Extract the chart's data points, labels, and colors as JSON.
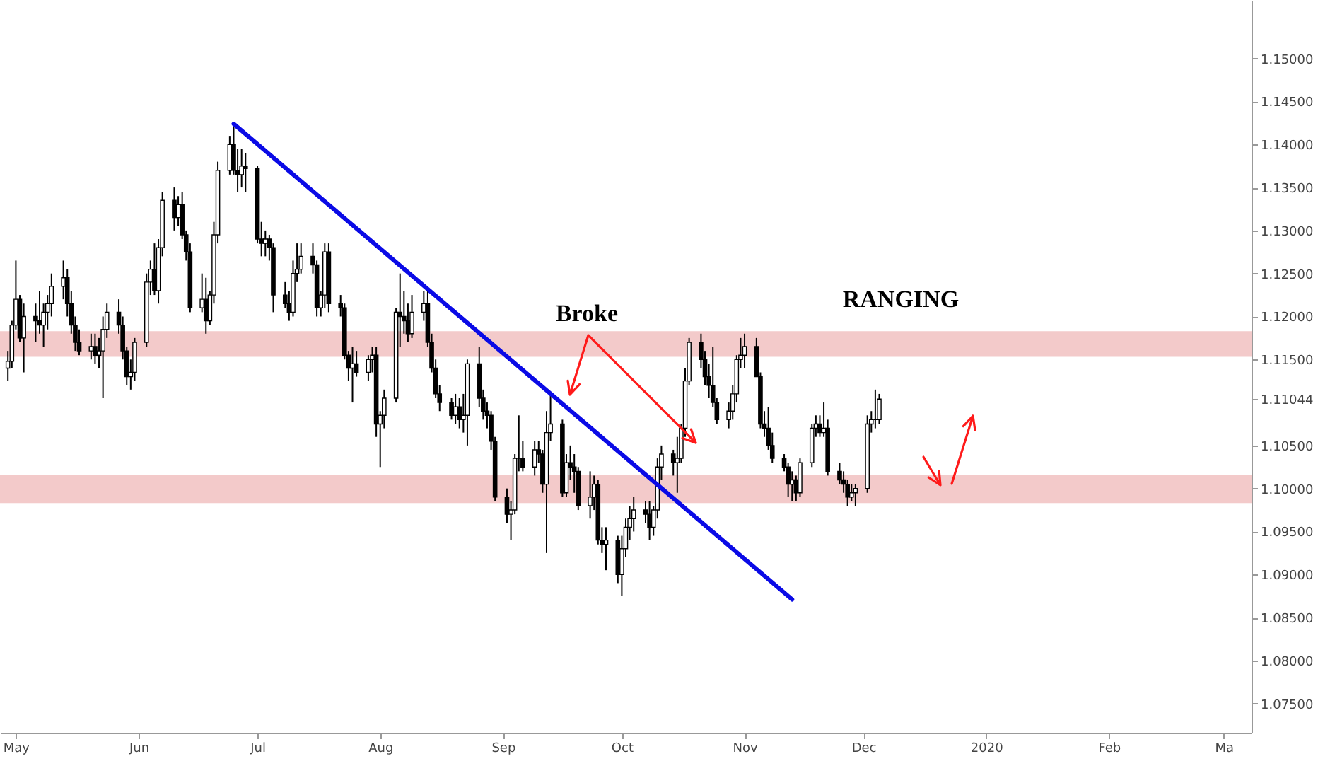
{
  "chart_data": {
    "type": "candlestick",
    "x": [
      "2019-04-29",
      "2019-04-30",
      "2019-05-01",
      "2019-05-02",
      "2019-05-03",
      "2019-05-06",
      "2019-05-07",
      "2019-05-08",
      "2019-05-09",
      "2019-05-10",
      "2019-05-13",
      "2019-05-14",
      "2019-05-15",
      "2019-05-16",
      "2019-05-17",
      "2019-05-20",
      "2019-05-21",
      "2019-05-22",
      "2019-05-23",
      "2019-05-24",
      "2019-05-27",
      "2019-05-28",
      "2019-05-29",
      "2019-05-30",
      "2019-05-31",
      "2019-06-03",
      "2019-06-04",
      "2019-06-05",
      "2019-06-06",
      "2019-06-07",
      "2019-06-10",
      "2019-06-11",
      "2019-06-12",
      "2019-06-13",
      "2019-06-14",
      "2019-06-17",
      "2019-06-18",
      "2019-06-19",
      "2019-06-20",
      "2019-06-21",
      "2019-06-24",
      "2019-06-25",
      "2019-06-26",
      "2019-06-27",
      "2019-06-28",
      "2019-07-01",
      "2019-07-02",
      "2019-07-03",
      "2019-07-04",
      "2019-07-05",
      "2019-07-08",
      "2019-07-09",
      "2019-07-10",
      "2019-07-11",
      "2019-07-12",
      "2019-07-15",
      "2019-07-16",
      "2019-07-17",
      "2019-07-18",
      "2019-07-19",
      "2019-07-22",
      "2019-07-23",
      "2019-07-24",
      "2019-07-25",
      "2019-07-26",
      "2019-07-29",
      "2019-07-30",
      "2019-07-31",
      "2019-08-01",
      "2019-08-02",
      "2019-08-05",
      "2019-08-06",
      "2019-08-07",
      "2019-08-08",
      "2019-08-09",
      "2019-08-12",
      "2019-08-13",
      "2019-08-14",
      "2019-08-15",
      "2019-08-16",
      "2019-08-19",
      "2019-08-20",
      "2019-08-21",
      "2019-08-22",
      "2019-08-23",
      "2019-08-26",
      "2019-08-27",
      "2019-08-28",
      "2019-08-29",
      "2019-08-30",
      "2019-09-02",
      "2019-09-03",
      "2019-09-04",
      "2019-09-05",
      "2019-09-06",
      "2019-09-09",
      "2019-09-10",
      "2019-09-11",
      "2019-09-12",
      "2019-09-13",
      "2019-09-16",
      "2019-09-17",
      "2019-09-18",
      "2019-09-19",
      "2019-09-20",
      "2019-09-23",
      "2019-09-24",
      "2019-09-25",
      "2019-09-26",
      "2019-09-27",
      "2019-09-30",
      "2019-10-01",
      "2019-10-02",
      "2019-10-03",
      "2019-10-04",
      "2019-10-07",
      "2019-10-08",
      "2019-10-09",
      "2019-10-10",
      "2019-10-11",
      "2019-10-14",
      "2019-10-15",
      "2019-10-16",
      "2019-10-17",
      "2019-10-18",
      "2019-10-21",
      "2019-10-22",
      "2019-10-23",
      "2019-10-24",
      "2019-10-25",
      "2019-10-28",
      "2019-10-29",
      "2019-10-30",
      "2019-10-31",
      "2019-11-01",
      "2019-11-04",
      "2019-11-05",
      "2019-11-06",
      "2019-11-07",
      "2019-11-08",
      "2019-11-11",
      "2019-11-12",
      "2019-11-13",
      "2019-11-14",
      "2019-11-15",
      "2019-11-18",
      "2019-11-19",
      "2019-11-20",
      "2019-11-21",
      "2019-11-22",
      "2019-11-25",
      "2019-11-26",
      "2019-11-27",
      "2019-11-28",
      "2019-11-29",
      "2019-12-02",
      "2019-12-03",
      "2019-12-04",
      "2019-12-05"
    ],
    "ohlc": [
      [
        1.114,
        1.116,
        1.1125,
        1.1148
      ],
      [
        1.1148,
        1.1195,
        1.114,
        1.119
      ],
      [
        1.119,
        1.1265,
        1.1185,
        1.122
      ],
      [
        1.122,
        1.1225,
        1.117,
        1.1175
      ],
      [
        1.1175,
        1.1215,
        1.1135,
        1.12
      ],
      [
        1.12,
        1.1215,
        1.117,
        1.1195
      ],
      [
        1.1195,
        1.123,
        1.118,
        1.119
      ],
      [
        1.119,
        1.1215,
        1.1165,
        1.1205
      ],
      [
        1.1205,
        1.1225,
        1.1185,
        1.1215
      ],
      [
        1.1215,
        1.125,
        1.12,
        1.1235
      ],
      [
        1.1235,
        1.1265,
        1.122,
        1.1245
      ],
      [
        1.1245,
        1.1255,
        1.12,
        1.1215
      ],
      [
        1.1215,
        1.123,
        1.118,
        1.119
      ],
      [
        1.119,
        1.12,
        1.116,
        1.117
      ],
      [
        1.117,
        1.1185,
        1.1155,
        1.116
      ],
      [
        1.116,
        1.118,
        1.115,
        1.1165
      ],
      [
        1.1165,
        1.118,
        1.1145,
        1.1155
      ],
      [
        1.1155,
        1.1175,
        1.114,
        1.116
      ],
      [
        1.116,
        1.12,
        1.1105,
        1.1185
      ],
      [
        1.1185,
        1.1215,
        1.1175,
        1.1205
      ],
      [
        1.1205,
        1.122,
        1.118,
        1.119
      ],
      [
        1.119,
        1.12,
        1.115,
        1.116
      ],
      [
        1.116,
        1.1165,
        1.112,
        1.113
      ],
      [
        1.113,
        1.115,
        1.1115,
        1.1135
      ],
      [
        1.1135,
        1.1175,
        1.1125,
        1.117
      ],
      [
        1.117,
        1.125,
        1.1165,
        1.124
      ],
      [
        1.124,
        1.1265,
        1.1225,
        1.1255
      ],
      [
        1.1255,
        1.1285,
        1.1225,
        1.123
      ],
      [
        1.123,
        1.129,
        1.1215,
        1.128
      ],
      [
        1.128,
        1.1345,
        1.127,
        1.1335
      ],
      [
        1.1335,
        1.135,
        1.13,
        1.1315
      ],
      [
        1.1315,
        1.134,
        1.1305,
        1.133
      ],
      [
        1.133,
        1.1345,
        1.129,
        1.1295
      ],
      [
        1.1295,
        1.13,
        1.1265,
        1.1275
      ],
      [
        1.1275,
        1.1285,
        1.1205,
        1.121
      ],
      [
        1.121,
        1.125,
        1.1205,
        1.122
      ],
      [
        1.122,
        1.1245,
        1.118,
        1.1195
      ],
      [
        1.1195,
        1.123,
        1.119,
        1.1225
      ],
      [
        1.1225,
        1.131,
        1.1215,
        1.1295
      ],
      [
        1.1295,
        1.138,
        1.1285,
        1.137
      ],
      [
        1.137,
        1.141,
        1.1365,
        1.14
      ],
      [
        1.14,
        1.1425,
        1.1365,
        1.137
      ],
      [
        1.137,
        1.1395,
        1.1345,
        1.1365
      ],
      [
        1.1365,
        1.1395,
        1.135,
        1.1375
      ],
      [
        1.1375,
        1.139,
        1.1345,
        1.1372
      ],
      [
        1.1372,
        1.1375,
        1.1285,
        1.129
      ],
      [
        1.129,
        1.131,
        1.127,
        1.1285
      ],
      [
        1.1285,
        1.13,
        1.127,
        1.129
      ],
      [
        1.129,
        1.1295,
        1.1265,
        1.128
      ],
      [
        1.128,
        1.1285,
        1.1205,
        1.1225
      ],
      [
        1.1225,
        1.124,
        1.121,
        1.1215
      ],
      [
        1.1215,
        1.123,
        1.1195,
        1.1205
      ],
      [
        1.1205,
        1.1265,
        1.12,
        1.125
      ],
      [
        1.125,
        1.1285,
        1.124,
        1.1255
      ],
      [
        1.1255,
        1.1285,
        1.125,
        1.127
      ],
      [
        1.127,
        1.1285,
        1.125,
        1.126
      ],
      [
        1.126,
        1.1265,
        1.12,
        1.121
      ],
      [
        1.121,
        1.123,
        1.12,
        1.1225
      ],
      [
        1.1225,
        1.1285,
        1.121,
        1.1275
      ],
      [
        1.1275,
        1.1285,
        1.1205,
        1.1215
      ],
      [
        1.1215,
        1.1225,
        1.12,
        1.121
      ],
      [
        1.121,
        1.1215,
        1.115,
        1.1155
      ],
      [
        1.1155,
        1.116,
        1.1125,
        1.114
      ],
      [
        1.114,
        1.1165,
        1.11,
        1.1145
      ],
      [
        1.1145,
        1.116,
        1.113,
        1.1135
      ],
      [
        1.1135,
        1.1155,
        1.1125,
        1.115
      ],
      [
        1.115,
        1.1165,
        1.1135,
        1.1155
      ],
      [
        1.1155,
        1.1165,
        1.106,
        1.1075
      ],
      [
        1.1075,
        1.109,
        1.1025,
        1.1085
      ],
      [
        1.1085,
        1.1115,
        1.107,
        1.1105
      ],
      [
        1.1105,
        1.121,
        1.11,
        1.1205
      ],
      [
        1.1205,
        1.125,
        1.1165,
        1.12
      ],
      [
        1.12,
        1.123,
        1.118,
        1.1195
      ],
      [
        1.1195,
        1.1215,
        1.117,
        1.118
      ],
      [
        1.118,
        1.1225,
        1.1175,
        1.1205
      ],
      [
        1.1205,
        1.123,
        1.1195,
        1.1215
      ],
      [
        1.1215,
        1.123,
        1.1165,
        1.117
      ],
      [
        1.117,
        1.118,
        1.1135,
        1.114
      ],
      [
        1.114,
        1.115,
        1.1105,
        1.111
      ],
      [
        1.111,
        1.112,
        1.109,
        1.11
      ],
      [
        1.11,
        1.1105,
        1.108,
        1.1085
      ],
      [
        1.1085,
        1.111,
        1.1075,
        1.1095
      ],
      [
        1.1095,
        1.1105,
        1.107,
        1.108
      ],
      [
        1.108,
        1.111,
        1.1065,
        1.1085
      ],
      [
        1.1085,
        1.115,
        1.105,
        1.1145
      ],
      [
        1.1145,
        1.1165,
        1.1095,
        1.1105
      ],
      [
        1.1105,
        1.1115,
        1.108,
        1.109
      ],
      [
        1.109,
        1.11,
        1.107,
        1.1085
      ],
      [
        1.1085,
        1.109,
        1.1045,
        1.1055
      ],
      [
        1.1055,
        1.106,
        1.0985,
        1.099
      ],
      [
        1.099,
        1.1,
        1.096,
        1.097
      ],
      [
        1.097,
        1.0985,
        1.094,
        1.0975
      ],
      [
        1.0975,
        1.104,
        1.097,
        1.1035
      ],
      [
        1.1035,
        1.1085,
        1.102,
        1.1035
      ],
      [
        1.1035,
        1.1055,
        1.102,
        1.1025
      ],
      [
        1.1025,
        1.1055,
        1.1015,
        1.1045
      ],
      [
        1.1045,
        1.1055,
        1.103,
        1.104
      ],
      [
        1.104,
        1.1045,
        1.0995,
        1.1005
      ],
      [
        1.1005,
        1.109,
        1.0925,
        1.1065
      ],
      [
        1.1065,
        1.111,
        1.1055,
        1.1075
      ],
      [
        1.1075,
        1.108,
        1.099,
        1.0995
      ],
      [
        1.0995,
        1.104,
        1.099,
        1.103
      ],
      [
        1.103,
        1.105,
        1.101,
        1.1025
      ],
      [
        1.1025,
        1.104,
        1.0995,
        1.102
      ],
      [
        1.102,
        1.1025,
        1.0975,
        1.098
      ],
      [
        1.098,
        1.102,
        1.0965,
        1.099
      ],
      [
        1.099,
        1.1015,
        1.0975,
        1.1005
      ],
      [
        1.1005,
        1.101,
        1.0935,
        1.094
      ],
      [
        1.094,
        1.0955,
        1.0925,
        1.0935
      ],
      [
        1.0935,
        1.0955,
        1.0905,
        1.094
      ],
      [
        1.094,
        1.0945,
        1.089,
        1.09
      ],
      [
        1.09,
        1.0945,
        1.0875,
        1.093
      ],
      [
        1.093,
        1.0965,
        1.092,
        1.0955
      ],
      [
        1.0955,
        1.098,
        1.094,
        1.0965
      ],
      [
        1.0965,
        1.099,
        1.095,
        1.0975
      ],
      [
        1.0975,
        1.0985,
        1.096,
        1.097
      ],
      [
        1.097,
        1.0985,
        1.094,
        1.0955
      ],
      [
        1.0955,
        1.098,
        1.0945,
        1.0975
      ],
      [
        1.0975,
        1.1035,
        1.0965,
        1.1025
      ],
      [
        1.1025,
        1.105,
        1.101,
        1.104
      ],
      [
        1.104,
        1.1045,
        1.1015,
        1.103
      ],
      [
        1.103,
        1.106,
        1.0995,
        1.1035
      ],
      [
        1.1035,
        1.1075,
        1.103,
        1.107
      ],
      [
        1.107,
        1.114,
        1.106,
        1.1125
      ],
      [
        1.1125,
        1.1175,
        1.112,
        1.117
      ],
      [
        1.117,
        1.118,
        1.114,
        1.115
      ],
      [
        1.115,
        1.116,
        1.112,
        1.113
      ],
      [
        1.113,
        1.1145,
        1.1105,
        1.112
      ],
      [
        1.112,
        1.1165,
        1.1095,
        1.11
      ],
      [
        1.11,
        1.1105,
        1.1075,
        1.108
      ],
      [
        1.108,
        1.11,
        1.107,
        1.109
      ],
      [
        1.109,
        1.112,
        1.108,
        1.111
      ],
      [
        1.111,
        1.1155,
        1.11,
        1.115
      ],
      [
        1.115,
        1.1175,
        1.114,
        1.1155
      ],
      [
        1.1155,
        1.118,
        1.114,
        1.1165
      ],
      [
        1.1165,
        1.1175,
        1.113,
        1.113
      ],
      [
        1.113,
        1.1135,
        1.107,
        1.1075
      ],
      [
        1.1075,
        1.109,
        1.106,
        1.107
      ],
      [
        1.107,
        1.1095,
        1.1045,
        1.105
      ],
      [
        1.105,
        1.1065,
        1.103,
        1.1035
      ],
      [
        1.1035,
        1.104,
        1.102,
        1.1025
      ],
      [
        1.1025,
        1.103,
        1.099,
        1.1005
      ],
      [
        1.1005,
        1.102,
        1.0985,
        1.101
      ],
      [
        1.101,
        1.1015,
        1.0985,
        1.0995
      ],
      [
        1.0995,
        1.1035,
        1.099,
        1.103
      ],
      [
        1.103,
        1.1075,
        1.1025,
        1.107
      ],
      [
        1.107,
        1.1085,
        1.106,
        1.1075
      ],
      [
        1.1075,
        1.1085,
        1.106,
        1.1065
      ],
      [
        1.1065,
        1.11,
        1.106,
        1.107
      ],
      [
        1.107,
        1.108,
        1.1015,
        1.102
      ],
      [
        1.102,
        1.103,
        1.1005,
        1.101
      ],
      [
        1.101,
        1.102,
        1.0995,
        1.1005
      ],
      [
        1.1005,
        1.101,
        1.098,
        1.099
      ],
      [
        1.099,
        1.1005,
        1.0985,
        1.0995
      ],
      [
        1.0995,
        1.1005,
        1.098,
        1.1
      ],
      [
        1.1,
        1.1085,
        1.0995,
        1.1075
      ],
      [
        1.1075,
        1.109,
        1.1065,
        1.108
      ],
      [
        1.108,
        1.1115,
        1.107,
        1.108
      ],
      [
        1.108,
        1.111,
        1.1075,
        1.1104
      ]
    ],
    "series": [
      {
        "type": "line",
        "color": "#0a0ae6",
        "x": [
          "2019-06-25",
          "2019-11-13"
        ],
        "values": [
          1.1424,
          1.0871
        ]
      }
    ],
    "bands": [
      {
        "axis": "y",
        "from": 1.1153,
        "to": 1.1183,
        "color": "#f2c4c4"
      },
      {
        "axis": "y",
        "from": 1.0983,
        "to": 1.1016,
        "color": "#f2c4c4"
      }
    ],
    "annotations": [
      "Broke",
      "RANGING"
    ],
    "xlim": [
      "2019-04-27",
      "2020-03-08"
    ],
    "xticks": [
      {
        "value": "2019-05-01",
        "label": "May"
      },
      {
        "value": "2019-06-01",
        "label": "Jun"
      },
      {
        "value": "2019-07-01",
        "label": "Jul"
      },
      {
        "value": "2019-08-01",
        "label": "Aug"
      },
      {
        "value": "2019-09-01",
        "label": "Sep"
      },
      {
        "value": "2019-10-01",
        "label": "Oct"
      },
      {
        "value": "2019-11-01",
        "label": "Nov"
      },
      {
        "value": "2019-12-01",
        "label": "Dec"
      },
      {
        "value": "2020-01-01",
        "label": "2020"
      },
      {
        "value": "2020-02-01",
        "label": "Feb"
      },
      {
        "value": "2020-03-01",
        "label": "Ma"
      }
    ],
    "ylim": [
      1.0716,
      1.1568
    ],
    "yticks": [
      {
        "value": 1.075,
        "label": "1.07500"
      },
      {
        "value": 1.08,
        "label": "1.08000"
      },
      {
        "value": 1.085,
        "label": "1.08500"
      },
      {
        "value": 1.09,
        "label": "1.09000"
      },
      {
        "value": 1.095,
        "label": "1.09500"
      },
      {
        "value": 1.1,
        "label": "1.10000"
      },
      {
        "value": 1.105,
        "label": "1.10500"
      },
      {
        "value": 1.11044,
        "label": "1.11044"
      },
      {
        "value": 1.115,
        "label": "1.11500"
      },
      {
        "value": 1.12,
        "label": "1.12000"
      },
      {
        "value": 1.125,
        "label": "1.12500"
      },
      {
        "value": 1.13,
        "label": "1.13000"
      },
      {
        "value": 1.135,
        "label": "1.13500"
      },
      {
        "value": 1.14,
        "label": "1.14000"
      },
      {
        "value": 1.145,
        "label": "1.14500"
      },
      {
        "value": 1.15,
        "label": "1.15000"
      }
    ]
  }
}
